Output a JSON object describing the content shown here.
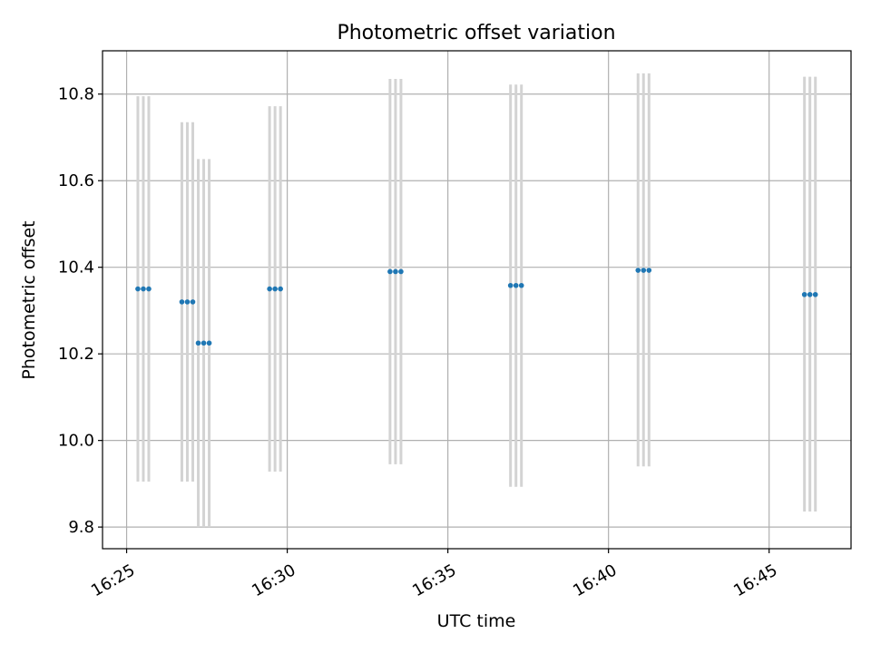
{
  "chart_data": {
    "type": "scatter",
    "title": "Photometric offset variation",
    "xlabel": "UTC time",
    "ylabel": "Photometric offset",
    "x_unit": "minutes past 16:00 UTC",
    "xlim": [
      24.25,
      47.55
    ],
    "ylim": [
      9.75,
      10.9
    ],
    "xticks": [
      {
        "value": 25,
        "label": "16:25"
      },
      {
        "value": 30,
        "label": "16:30"
      },
      {
        "value": 35,
        "label": "16:35"
      },
      {
        "value": 40,
        "label": "16:40"
      },
      {
        "value": 45,
        "label": "16:45"
      }
    ],
    "yticks": [
      {
        "value": 9.8,
        "label": "9.8"
      },
      {
        "value": 10.0,
        "label": "10.0"
      },
      {
        "value": 10.2,
        "label": "10.2"
      },
      {
        "value": 10.4,
        "label": "10.4"
      },
      {
        "value": 10.6,
        "label": "10.6"
      },
      {
        "value": 10.8,
        "label": "10.8"
      }
    ],
    "grid": true,
    "marker_color": "#1f77b4",
    "errorbar_color": "#d3d3d3",
    "points": [
      {
        "x": 25.35,
        "y": 10.35,
        "err_low": 9.905,
        "err_high": 10.795
      },
      {
        "x": 25.52,
        "y": 10.35,
        "err_low": 9.905,
        "err_high": 10.795
      },
      {
        "x": 25.69,
        "y": 10.35,
        "err_low": 9.905,
        "err_high": 10.795
      },
      {
        "x": 26.72,
        "y": 10.32,
        "err_low": 9.905,
        "err_high": 10.735
      },
      {
        "x": 26.89,
        "y": 10.32,
        "err_low": 9.905,
        "err_high": 10.735
      },
      {
        "x": 27.06,
        "y": 10.32,
        "err_low": 9.905,
        "err_high": 10.735
      },
      {
        "x": 27.23,
        "y": 10.225,
        "err_low": 9.8,
        "err_high": 10.65
      },
      {
        "x": 27.4,
        "y": 10.225,
        "err_low": 9.8,
        "err_high": 10.65
      },
      {
        "x": 27.57,
        "y": 10.225,
        "err_low": 9.8,
        "err_high": 10.65
      },
      {
        "x": 29.45,
        "y": 10.35,
        "err_low": 9.928,
        "err_high": 10.772
      },
      {
        "x": 29.62,
        "y": 10.35,
        "err_low": 9.928,
        "err_high": 10.772
      },
      {
        "x": 29.79,
        "y": 10.35,
        "err_low": 9.928,
        "err_high": 10.772
      },
      {
        "x": 33.2,
        "y": 10.39,
        "err_low": 9.945,
        "err_high": 10.835
      },
      {
        "x": 33.37,
        "y": 10.39,
        "err_low": 9.945,
        "err_high": 10.835
      },
      {
        "x": 33.54,
        "y": 10.39,
        "err_low": 9.945,
        "err_high": 10.835
      },
      {
        "x": 36.95,
        "y": 10.358,
        "err_low": 9.893,
        "err_high": 10.822
      },
      {
        "x": 37.12,
        "y": 10.358,
        "err_low": 9.893,
        "err_high": 10.822
      },
      {
        "x": 37.29,
        "y": 10.358,
        "err_low": 9.893,
        "err_high": 10.822
      },
      {
        "x": 40.92,
        "y": 10.393,
        "err_low": 9.94,
        "err_high": 10.848
      },
      {
        "x": 41.09,
        "y": 10.393,
        "err_low": 9.94,
        "err_high": 10.848
      },
      {
        "x": 41.26,
        "y": 10.393,
        "err_low": 9.94,
        "err_high": 10.848
      },
      {
        "x": 46.1,
        "y": 10.337,
        "err_low": 9.836,
        "err_high": 10.84
      },
      {
        "x": 46.27,
        "y": 10.337,
        "err_low": 9.836,
        "err_high": 10.84
      },
      {
        "x": 46.44,
        "y": 10.337,
        "err_low": 9.836,
        "err_high": 10.84
      }
    ]
  }
}
